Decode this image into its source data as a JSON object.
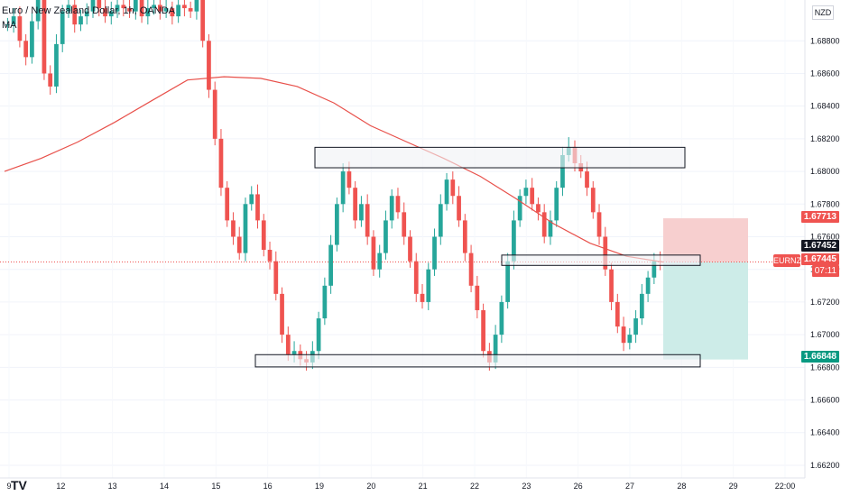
{
  "header": {
    "title": "Euro / New Zealand Dollar, 1h, OANDA",
    "indicator": "MA",
    "currency": "NZD"
  },
  "axis": {
    "y_ticks": [
      "1.68800",
      "1.68600",
      "1.68400",
      "1.68200",
      "1.68000",
      "1.67800",
      "1.67600",
      "1.67400",
      "1.67200",
      "1.67000",
      "1.66800",
      "1.66600",
      "1.66400",
      "1.66200"
    ],
    "x_ticks": [
      "9",
      "12",
      "13",
      "14",
      "15",
      "16",
      "19",
      "20",
      "21",
      "22",
      "23",
      "26",
      "27",
      "28",
      "29",
      "22:00"
    ]
  },
  "price_tags": {
    "stop": "1.67713",
    "level": "1.67452",
    "current": "1.67445",
    "countdown": "07:11",
    "target": "1.66848",
    "symbol": "EURNZD"
  },
  "colors": {
    "up": "#26a69a",
    "down": "#ef5350",
    "ma": "#e8504a",
    "stop_zone": "#f7cfcf",
    "target_zone": "#cdece8"
  },
  "chart_data": {
    "type": "candlestick",
    "ylim": [
      1.6615,
      1.6905
    ],
    "x_labels": [
      "9",
      "12",
      "13",
      "14",
      "15",
      "16",
      "19",
      "20",
      "21",
      "22",
      "23",
      "26",
      "27",
      "28",
      "29",
      "22:00"
    ],
    "series": [
      {
        "name": "",
        "closes": [
          1.689,
          1.6895,
          1.688,
          1.687,
          1.6892,
          1.6905,
          1.686,
          1.6852,
          1.6878,
          1.6898,
          1.6902,
          1.689,
          1.6895,
          1.6898,
          1.6905,
          1.69,
          1.6895,
          1.6898,
          1.6902,
          1.69,
          1.6898,
          1.6905,
          1.6895,
          1.69,
          1.6902,
          1.6898,
          1.69,
          1.6895,
          1.6902,
          1.69,
          1.6898,
          1.6905,
          1.688,
          1.685,
          1.682,
          1.679,
          1.677,
          1.676,
          1.675,
          1.678,
          1.6786,
          1.677,
          1.6752,
          1.6745,
          1.6725,
          1.67,
          1.6688,
          1.669,
          1.6685,
          1.6683,
          1.669,
          1.671,
          1.673,
          1.6755,
          1.678,
          1.68,
          1.679,
          1.677,
          1.678,
          1.676,
          1.674,
          1.675,
          1.677,
          1.6785,
          1.6775,
          1.676,
          1.6745,
          1.6725,
          1.672,
          1.674,
          1.676,
          1.678,
          1.6795,
          1.6785,
          1.677,
          1.675,
          1.673,
          1.6715,
          1.669,
          1.6683,
          1.67,
          1.672,
          1.6745,
          1.677,
          1.6785,
          1.679,
          1.678,
          1.6775,
          1.676,
          1.677,
          1.679,
          1.681,
          1.6815,
          1.6805,
          1.68,
          1.679,
          1.6775,
          1.676,
          1.674,
          1.672,
          1.6705,
          1.6695,
          1.67,
          1.671,
          1.6725,
          1.6735,
          1.6745,
          1.67445
        ]
      },
      {
        "name": "MA",
        "values": [
          1.68,
          1.6808,
          1.6818,
          1.683,
          1.6843,
          1.6856,
          1.6858,
          1.6857,
          1.6852,
          1.6842,
          1.6828,
          1.6818,
          1.6808,
          1.6797,
          1.6783,
          1.6768,
          1.6756,
          1.6748,
          1.67445
        ]
      }
    ],
    "annotations": {
      "resistance_zone": [
        1.6805,
        1.6812
      ],
      "mid_zone": [
        1.67452,
        1.6746
      ],
      "support_zone": [
        1.6683,
        1.6685
      ],
      "entry": 1.67445,
      "stop": 1.67713,
      "target": 1.66848
    }
  }
}
